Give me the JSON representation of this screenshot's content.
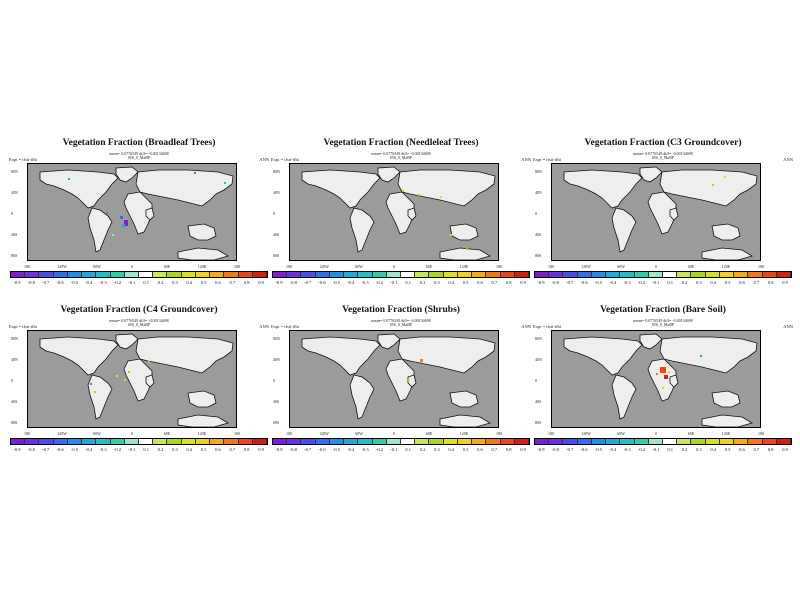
{
  "figure": {
    "panels": [
      {
        "title": "Vegetation Fraction (Broadleaf Trees)",
        "subtitle": "mean= 0.0776549 diff= -0.00134698",
        "subtitle2": "056_0_MaBP",
        "expt": "Expt = tfsti-tfbi",
        "season": "ANN"
      },
      {
        "title": "Vegetation Fraction (Needleleaf Trees)",
        "subtitle": "mean= 0.0776549 diff= -0.00134698",
        "subtitle2": "056_0_MaBP",
        "expt": "Expt = tfsti-tfbi",
        "season": "ANN"
      },
      {
        "title": "Vegetation Fraction (C3 Groundcover)",
        "subtitle": "mean= 0.0776549 diff= -0.00134698",
        "subtitle2": "056_0_MaBP",
        "expt": "Expt = tfsti-tfbi",
        "season": "ANN"
      },
      {
        "title": "Vegetation Fraction (C4 Groundcover)",
        "subtitle": "mean= 0.0776549 diff= -0.00134698",
        "subtitle2": "056_0_MaBP",
        "expt": "Expt = tfsti-tfbi",
        "season": "ANN"
      },
      {
        "title": "Vegetation Fraction (Shrubs)",
        "subtitle": "mean= 0.0776549 diff= -0.00134698",
        "subtitle2": "056_0_MaBP",
        "expt": "Expt = tfsti-tfbi",
        "season": "ANN"
      },
      {
        "title": "Vegetation Fraction (Bare Soil)",
        "subtitle": "mean= 0.0776549 diff= -0.00134698",
        "subtitle2": "056_0_MaBP",
        "expt": "Expt = tfsti-tfbi",
        "season": "ANN"
      }
    ],
    "lat_labels": [
      "80N",
      "40N",
      "0",
      "40S",
      "80S"
    ],
    "lon_labels": [
      "180",
      "120W",
      "60W",
      "0",
      "60E",
      "120E",
      "180"
    ],
    "colorbar": {
      "labels": [
        "-0.9",
        "-0.8",
        "-0.7",
        "-0.6",
        "-0.5",
        "-0.4",
        "-0.3",
        "-0.2",
        "-0.1",
        "0.1",
        "0.2",
        "0.3",
        "0.4",
        "0.5",
        "0.6",
        "0.7",
        "0.8",
        "0.9"
      ],
      "colors": [
        "#7a1fd1",
        "#6a32e0",
        "#4a4de8",
        "#2f6ff0",
        "#1f8fe8",
        "#1fa8d8",
        "#22bfc4",
        "#30cfa8",
        "#9fe7c8",
        "#ffffff",
        "#c8e85a",
        "#a8d820",
        "#d8e020",
        "#f0d020",
        "#f8a818",
        "#f07818",
        "#e84818",
        "#d02010"
      ]
    },
    "colors": {
      "ocean": "#9b9b9b",
      "land": "#eeeeee"
    }
  }
}
